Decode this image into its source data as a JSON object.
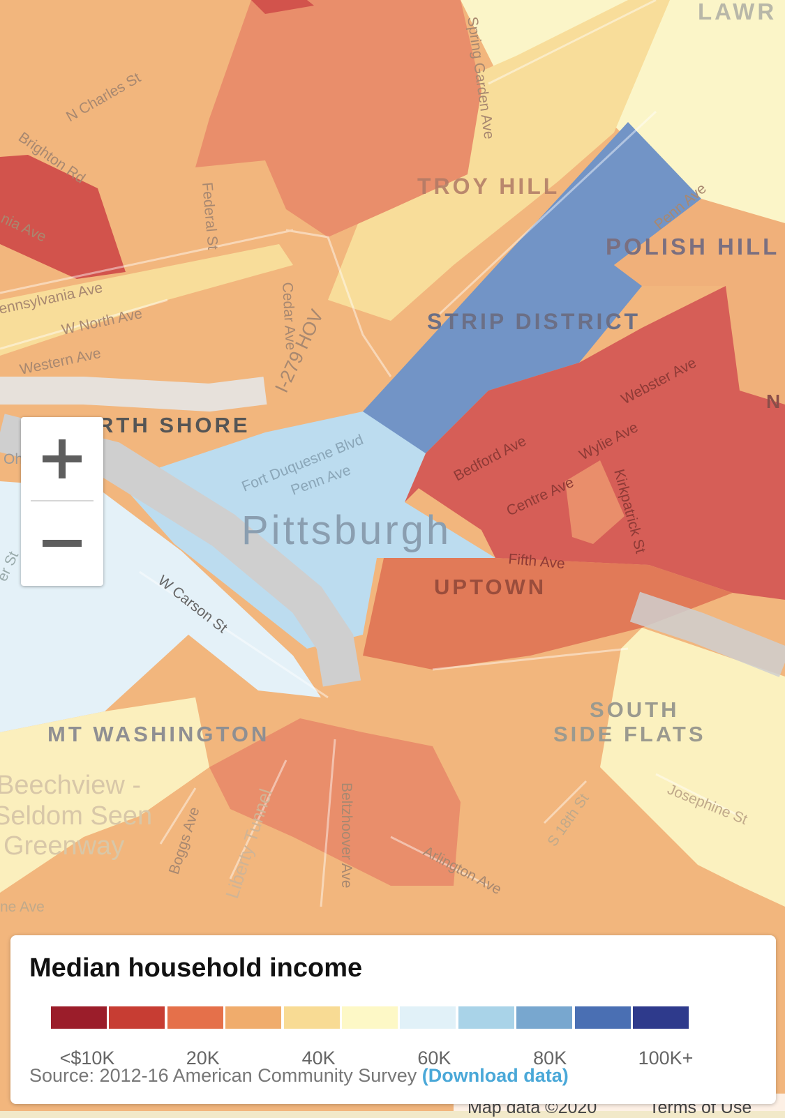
{
  "map": {
    "neighborhood_labels": [
      "LAWR",
      "TROY HILL",
      "POLISH HILL",
      "STRIP DISTRICT",
      "N",
      "RTH SHORE",
      "Pittsburgh",
      "UPTOWN",
      "SOUTH",
      "SIDE FLATS",
      "MT WASHINGTON",
      "Beechview -",
      "Seldom Seen",
      "Greenway"
    ],
    "street_labels": [
      "N Charles St",
      "Brighton Rd",
      "nia Ave",
      "Federal St",
      "Spring Garden Ave",
      "Penn Ave",
      "ennsylvania Ave",
      "W North Ave",
      "Western Ave",
      "Cedar Ave",
      "I-279 HOV",
      "Webster Ave",
      "Bedford Ave",
      "Wylie Ave",
      "Centre Ave",
      "Kirkpatrick St",
      "Fort Duquesne Blvd",
      "Penn Ave",
      "Fifth Ave",
      "W Carson St",
      "er St",
      "Oh",
      "Boggs Ave",
      "Liberty Tunnel",
      "Beltzhoover Ave",
      "Arlington Ave",
      "S 18th St",
      "Josephine St",
      "ne Ave"
    ]
  },
  "zoom": {
    "in_label": "+",
    "out_label": "−"
  },
  "legend": {
    "title": "Median household income",
    "colors": [
      "#9b1d2a",
      "#c73d33",
      "#e5704a",
      "#f0ac6c",
      "#f8db94",
      "#fdf8c6",
      "#e1f1f8",
      "#a9d3e8",
      "#78a7cf",
      "#4a6fb3",
      "#2e3a8c"
    ],
    "ticks": [
      "<$10K",
      "20K",
      "40K",
      "60K",
      "80K",
      "100K+"
    ],
    "source_text": "Source: 2012-16 American Community Survey",
    "download_label": "(Download data)"
  },
  "attribution": {
    "map_data": "Map data ©2020",
    "terms": "Terms of Use"
  }
}
